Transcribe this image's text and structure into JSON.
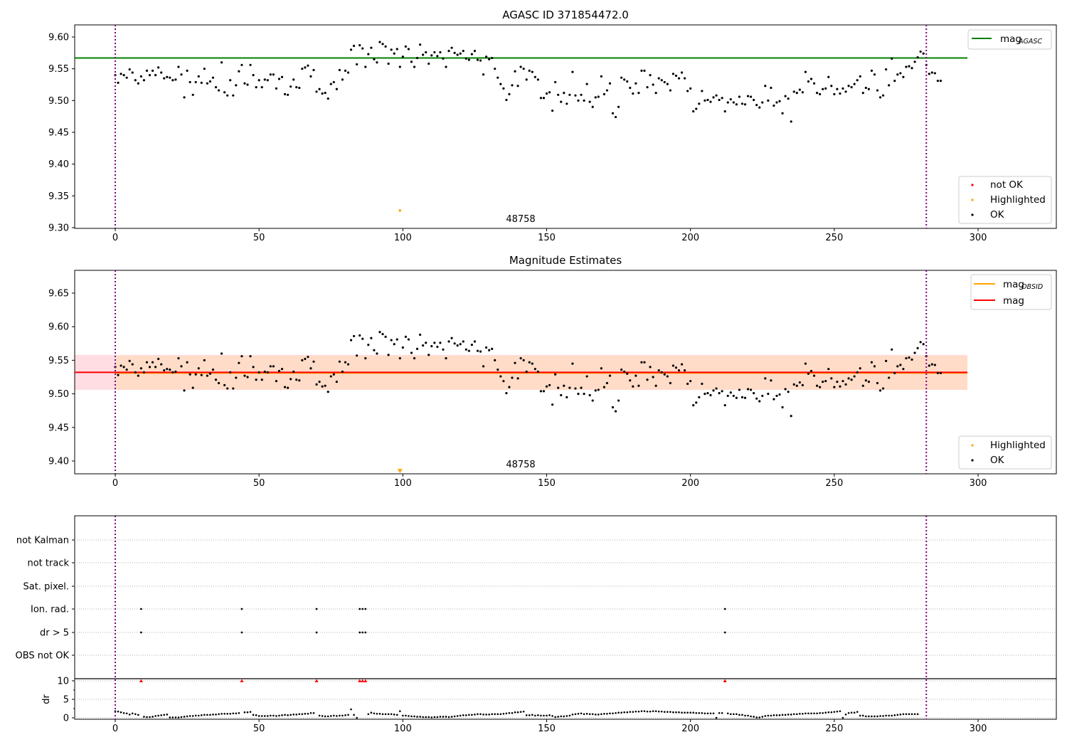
{
  "chart_data": [
    {
      "type": "scatter",
      "title": "AGASC ID 371854472.0",
      "xlabel": "",
      "ylabel": "",
      "xlim": [
        -14,
        327
      ],
      "ylim": [
        9.3,
        9.62
      ],
      "xticks": [
        "0",
        "50",
        "100",
        "150",
        "200",
        "250",
        "300"
      ],
      "yticks": [
        "9.30",
        "9.35",
        "9.40",
        "9.45",
        "9.50",
        "9.55",
        "9.60"
      ],
      "reference_line": {
        "name": "mag_AGASC",
        "value": 9.567,
        "color": "#008000"
      },
      "vlines": [
        0,
        282
      ],
      "vline_color": "#800080",
      "highlighted": [
        {
          "x": 99,
          "y": 9.327
        }
      ],
      "annotation": {
        "text": "48758",
        "x": 141
      },
      "legend_lines": [
        {
          "label": "mag",
          "sub": "AGASC",
          "color": "#008000"
        }
      ],
      "legend_points": [
        {
          "label": "not OK",
          "color": "#ff0000"
        },
        {
          "label": "Highlighted",
          "color": "#ffa500"
        },
        {
          "label": "OK",
          "color": "#000000"
        }
      ],
      "legend_position": [
        "top-right",
        "bottom-right"
      ]
    },
    {
      "type": "scatter",
      "title": "Magnitude Estimates",
      "xlim": [
        -14,
        327
      ],
      "ylim": [
        9.38,
        9.685
      ],
      "xticks": [
        "0",
        "50",
        "100",
        "150",
        "200",
        "250",
        "300"
      ],
      "yticks": [
        "9.40",
        "9.45",
        "9.50",
        "9.55",
        "9.60",
        "9.65"
      ],
      "mag_obsid": {
        "value": 9.531,
        "band": [
          9.506,
          9.557
        ],
        "color": "#ffa500"
      },
      "mag": {
        "value": 9.532,
        "band": [
          9.506,
          9.558
        ],
        "color": "#ff0000"
      },
      "vlines": [
        0,
        282
      ],
      "highlighted": [
        {
          "x": 99,
          "y": 9.385
        }
      ],
      "annotation": {
        "text": "48758",
        "x": 141
      },
      "legend_lines": [
        {
          "label": "mag",
          "sub": "OBSID",
          "color": "#ffa500"
        },
        {
          "label": "mag",
          "sub": "",
          "color": "#ff0000"
        }
      ],
      "legend_points": [
        {
          "label": "Highlighted",
          "color": "#ffa500"
        },
        {
          "label": "OK",
          "color": "#000000"
        }
      ],
      "legend_position": [
        "top-right",
        "bottom-right"
      ]
    },
    {
      "type": "scatter",
      "title": "",
      "xlim": [
        -14,
        327
      ],
      "xticks": [
        "0",
        "50",
        "100",
        "150",
        "200",
        "250",
        "300"
      ],
      "flag_rows": [
        "not Kalman",
        "not track",
        "Sat. pixel.",
        "Ion. rad.",
        "dr > 5",
        "OBS not OK"
      ],
      "flags": {
        "Ion. rad.": [
          9,
          44,
          70,
          85,
          86,
          87,
          212
        ],
        "dr > 5": [
          9,
          44,
          70,
          85,
          86,
          87,
          212
        ]
      },
      "dr_ylabel": "dr",
      "dr_yticks": [
        "0",
        "5",
        "10"
      ],
      "dr_clipped": [
        9,
        44,
        70,
        85,
        86,
        87,
        212
      ],
      "vlines": [
        0,
        282
      ]
    }
  ],
  "series": {
    "mag": [
      9.54,
      9.528,
      9.542,
      9.54,
      9.536,
      9.549,
      9.544,
      9.532,
      9.527,
      9.538,
      9.532,
      9.547,
      9.54,
      9.547,
      9.54,
      9.552,
      9.544,
      9.535,
      9.537,
      9.536,
      9.532,
      9.533,
      9.553,
      9.541,
      9.505,
      9.547,
      9.529,
      9.509,
      9.529,
      9.538,
      9.528,
      9.55,
      9.527,
      9.53,
      9.536,
      9.521,
      9.516,
      9.56,
      9.513,
      9.508,
      9.532,
      9.508,
      9.524,
      9.546,
      9.556,
      9.527,
      9.525,
      9.556,
      9.54,
      9.521,
      9.532,
      9.521,
      9.533,
      9.532,
      9.541,
      9.541,
      9.519,
      9.534,
      9.537,
      9.51,
      9.509,
      9.522,
      9.533,
      9.521,
      9.52,
      9.55,
      9.552,
      9.555,
      9.538,
      9.548,
      9.514,
      9.518,
      9.511,
      9.512,
      9.503,
      9.526,
      9.529,
      9.518,
      9.548,
      9.533,
      9.547,
      9.544,
      9.58,
      9.586,
      9.557,
      9.587,
      9.582,
      9.553,
      9.573,
      9.583,
      9.565,
      9.56,
      9.592,
      9.589,
      9.585,
      9.558,
      9.58,
      9.574,
      9.581,
      9.553,
      9.569,
      9.585,
      9.581,
      9.561,
      9.553,
      9.567,
      9.588,
      9.572,
      9.576,
      9.558,
      9.571,
      9.576,
      9.57,
      9.576,
      9.566,
      9.553,
      9.578,
      9.583,
      9.575,
      9.572,
      9.574,
      9.578,
      9.566,
      9.564,
      9.573,
      9.578,
      9.564,
      9.563,
      9.541,
      9.569,
      9.565,
      9.567,
      9.55,
      9.536,
      9.526,
      9.519,
      9.501,
      9.51,
      9.524,
      9.546,
      9.523,
      9.553,
      9.55,
      9.533,
      9.547,
      9.545,
      9.537,
      9.533,
      9.504,
      9.504,
      9.511,
      9.513,
      9.484,
      9.529,
      9.509,
      9.498,
      9.512,
      9.495,
      9.509,
      9.545,
      9.508,
      9.5,
      9.509,
      9.5,
      9.526,
      9.498,
      9.49,
      9.505,
      9.506,
      9.538,
      9.51,
      9.516,
      9.527,
      9.48,
      9.474,
      9.49,
      9.536,
      9.533,
      9.53,
      9.52,
      9.511,
      9.527,
      9.512,
      9.547,
      9.547,
      9.521,
      9.54,
      9.525,
      9.512,
      9.535,
      9.532,
      9.529,
      9.526,
      9.516,
      9.542,
      9.539,
      9.535,
      9.544,
      9.535,
      9.515,
      9.519,
      9.483,
      9.487,
      9.495,
      9.515,
      9.5,
      9.501,
      9.498,
      9.505,
      9.508,
      9.501,
      9.504,
      9.483,
      9.497,
      9.502,
      9.497,
      9.494,
      9.506,
      9.495,
      9.494,
      9.507,
      9.506,
      9.501,
      9.493,
      9.489,
      9.497,
      9.523,
      9.5,
      9.52,
      9.492,
      9.497,
      9.499,
      9.48,
      9.507,
      9.503,
      9.467,
      9.514,
      9.512,
      9.517,
      9.513,
      9.545,
      9.53,
      9.534,
      9.527,
      9.512,
      9.51,
      9.518,
      9.519,
      9.537,
      9.523,
      9.51,
      9.518,
      9.511,
      9.519,
      9.514,
      9.523,
      9.521,
      9.526,
      9.532,
      9.538,
      9.512,
      9.52,
      9.518,
      9.547,
      9.541,
      9.516,
      9.505,
      9.508,
      9.549,
      9.524,
      9.566,
      9.531,
      9.541,
      9.543,
      9.537,
      9.553,
      9.554,
      9.551,
      9.561,
      9.568,
      9.577,
      9.574,
      9.556,
      9.542,
      9.544,
      9.543,
      9.531,
      9.531
    ],
    "dr": [
      1.8,
      1.7,
      1.5,
      1.3,
      1.2,
      0.9,
      1.2,
      1.0,
      0.8,
      0.4,
      0.3,
      0.2,
      0.2,
      0.3,
      0.5,
      0.6,
      0.7,
      0.8,
      0.9,
      0.1,
      0.1,
      0.1,
      0.1,
      0.2,
      0.3,
      0.4,
      0.5,
      0.5,
      0.6,
      0.6,
      0.7,
      0.8,
      0.8,
      0.8,
      0.9,
      0.9,
      1.0,
      1.1,
      1.1,
      1.1,
      1.1,
      1.2,
      1.2,
      1.3,
      1.4,
      1.5,
      1.5,
      1.6,
      0.8,
      0.7,
      0.5,
      0.5,
      0.5,
      0.5,
      0.6,
      0.6,
      0.5,
      0.6,
      0.7,
      0.8,
      0.7,
      0.8,
      0.9,
      0.9,
      1.0,
      1.0,
      1.1,
      1.1,
      1.3,
      1.3,
      0.6,
      0.6,
      0.5,
      0.4,
      0.4,
      0.5,
      0.6,
      0.5,
      0.6,
      0.6,
      0.7,
      0.8,
      2.3,
      0.8,
      0.0,
      0.0,
      0.0,
      1.1,
      1.0,
      1.4,
      1.2,
      1.1,
      1.1,
      1.0,
      1.0,
      1.0,
      1.0,
      0.9,
      0.8,
      1.8,
      0.6,
      0.6,
      0.5,
      0.4,
      0.4,
      0.3,
      0.3,
      0.2,
      0.2,
      0.2,
      0.1,
      0.2,
      0.2,
      0.3,
      0.3,
      0.3,
      0.2,
      0.3,
      0.4,
      0.5,
      0.6,
      0.7,
      0.7,
      0.8,
      0.8,
      0.9,
      1.0,
      1.0,
      0.9,
      0.9,
      0.9,
      1.0,
      1.0,
      1.0,
      1.0,
      1.1,
      1.2,
      1.3,
      1.3,
      1.5,
      1.5,
      1.6,
      1.7,
      0.7,
      0.7,
      0.8,
      0.6,
      0.7,
      0.6,
      0.6,
      0.6,
      0.7,
      0.5,
      0.2,
      0.3,
      0.4,
      0.4,
      0.5,
      0.6,
      0.9,
      1.0,
      1.1,
      1.2,
      1.0,
      1.1,
      1.0,
      1.0,
      0.9,
      0.9,
      1.0,
      1.1,
      1.1,
      1.2,
      1.2,
      1.3,
      1.4,
      1.4,
      1.5,
      1.5,
      1.6,
      1.6,
      1.7,
      1.7,
      1.8,
      1.8,
      1.7,
      1.7,
      1.8,
      1.8,
      1.7,
      1.7,
      1.6,
      1.6,
      1.6,
      1.5,
      1.5,
      1.5,
      1.4,
      1.4,
      1.4,
      1.4,
      1.4,
      1.3,
      1.3,
      1.3,
      1.2,
      1.2,
      1.2,
      1.2,
      0.0,
      1.3,
      1.3,
      1.2,
      1.2,
      1.0,
      1.0,
      1.0,
      0.8,
      0.8,
      0.6,
      0.6,
      0.4,
      0.3,
      0.1,
      0.1,
      0.3,
      0.5,
      0.6,
      0.6,
      0.7,
      0.7,
      0.7,
      0.8,
      0.8,
      0.9,
      0.9,
      1.0,
      1.0,
      1.1,
      1.1,
      1.2,
      1.2,
      1.2,
      1.2,
      1.2,
      1.3,
      1.3,
      1.4,
      1.5,
      1.5,
      1.6,
      1.7,
      1.8,
      0.0,
      0.9,
      1.3,
      1.4,
      1.4,
      1.6,
      0.6,
      0.6,
      0.4,
      0.4,
      0.4,
      0.4,
      0.4,
      0.5,
      0.5,
      0.6,
      0.6,
      0.6,
      0.7,
      0.8,
      0.9,
      1.0,
      1.0,
      1.0,
      1.0,
      1.0,
      1.0
    ]
  }
}
